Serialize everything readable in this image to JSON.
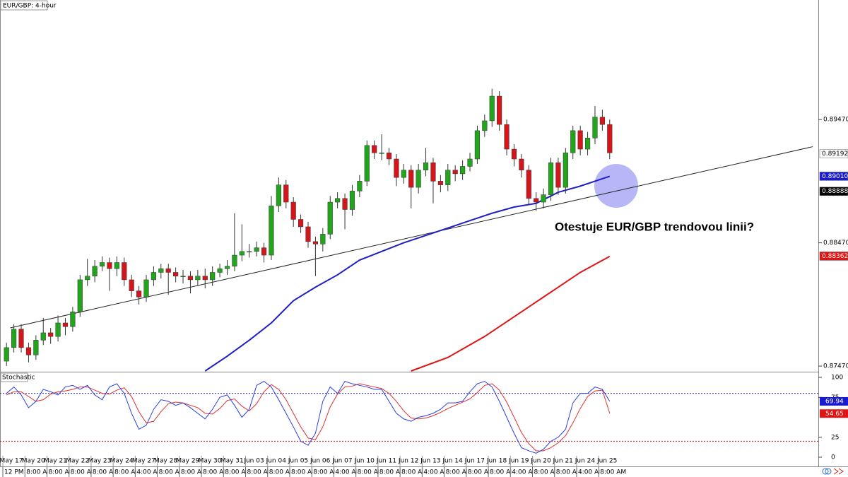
{
  "chart_data": {
    "type": "candlestick",
    "title": "EUR/GBP: 4-hour",
    "up_color": "#22a51c",
    "down_color": "#d4161c",
    "open": [
      0.8751,
      0.8762,
      0.8777,
      0.8762,
      0.8756,
      0.8768,
      0.8774,
      0.8771,
      0.8782,
      0.8779,
      0.8791,
      0.8817,
      0.882,
      0.8828,
      0.8831,
      0.8826,
      0.8831,
      0.8817,
      0.8808,
      0.8803,
      0.8817,
      0.8823,
      0.8826,
      0.8823,
      0.882,
      0.882,
      0.8817,
      0.882,
      0.8817,
      0.8823,
      0.8826,
      0.8828,
      0.8837,
      0.884,
      0.884,
      0.8843,
      0.8837,
      0.8877,
      0.8894,
      0.888,
      0.8866,
      0.886,
      0.8848,
      0.8846,
      0.8854,
      0.888,
      0.8883,
      0.8874,
      0.8889,
      0.8897,
      0.8926,
      0.892,
      0.892,
      0.8915,
      0.89,
      0.8906,
      0.8892,
      0.8906,
      0.8912,
      0.8897,
      0.8894,
      0.8906,
      0.8903,
      0.8909,
      0.8915,
      0.8938,
      0.8946,
      0.8966,
      0.8943,
      0.8923,
      0.8915,
      0.8906,
      0.8883,
      0.888,
      0.8886,
      0.8912,
      0.8892,
      0.892,
      0.8938,
      0.8923,
      0.8932,
      0.8949,
      0.8943
    ],
    "high": [
      0.8766,
      0.8781,
      0.8781,
      0.8766,
      0.8772,
      0.8786,
      0.8778,
      0.8788,
      0.8786,
      0.8795,
      0.8821,
      0.8834,
      0.8833,
      0.8836,
      0.8835,
      0.8836,
      0.8835,
      0.8821,
      0.8812,
      0.8821,
      0.8828,
      0.883,
      0.883,
      0.8827,
      0.8825,
      0.8824,
      0.8825,
      0.8826,
      0.8828,
      0.883,
      0.8833,
      0.8871,
      0.8862,
      0.8846,
      0.8848,
      0.8847,
      0.8885,
      0.89,
      0.8898,
      0.8884,
      0.887,
      0.8864,
      0.8852,
      0.8859,
      0.8885,
      0.8888,
      0.8887,
      0.8894,
      0.8902,
      0.893,
      0.893,
      0.8935,
      0.8924,
      0.8919,
      0.8911,
      0.891,
      0.8911,
      0.8924,
      0.8916,
      0.8902,
      0.8911,
      0.891,
      0.8914,
      0.892,
      0.8942,
      0.8951,
      0.8972,
      0.897,
      0.8947,
      0.8927,
      0.8919,
      0.891,
      0.8888,
      0.8891,
      0.8916,
      0.8916,
      0.8924,
      0.8942,
      0.8942,
      0.8937,
      0.8958,
      0.8955,
      0.8947
    ],
    "low": [
      0.8747,
      0.8758,
      0.8758,
      0.875,
      0.8752,
      0.8764,
      0.8765,
      0.8767,
      0.8772,
      0.8775,
      0.8787,
      0.8812,
      0.8815,
      0.8824,
      0.8808,
      0.882,
      0.8812,
      0.8803,
      0.8797,
      0.8799,
      0.8812,
      0.8818,
      0.8805,
      0.8815,
      0.8814,
      0.8806,
      0.8812,
      0.881,
      0.8812,
      0.8819,
      0.8821,
      0.8824,
      0.8832,
      0.8835,
      0.8836,
      0.8831,
      0.8833,
      0.8872,
      0.8875,
      0.886,
      0.8855,
      0.8843,
      0.882,
      0.884,
      0.885,
      0.8875,
      0.8858,
      0.8869,
      0.8884,
      0.8893,
      0.8915,
      0.8914,
      0.891,
      0.8893,
      0.8895,
      0.8875,
      0.8887,
      0.8901,
      0.8879,
      0.8888,
      0.8889,
      0.8897,
      0.8898,
      0.8905,
      0.8911,
      0.8933,
      0.8941,
      0.8938,
      0.8918,
      0.8909,
      0.89,
      0.8878,
      0.8873,
      0.8875,
      0.8881,
      0.8886,
      0.8887,
      0.8915,
      0.8918,
      0.8918,
      0.8927,
      0.8938,
      0.8915
    ],
    "close": [
      0.8762,
      0.8777,
      0.8762,
      0.8756,
      0.8768,
      0.8774,
      0.8771,
      0.8782,
      0.8779,
      0.8791,
      0.8817,
      0.882,
      0.8828,
      0.8831,
      0.8826,
      0.8831,
      0.8817,
      0.8808,
      0.8803,
      0.8817,
      0.8823,
      0.8826,
      0.8823,
      0.882,
      0.882,
      0.8817,
      0.882,
      0.8817,
      0.8823,
      0.8826,
      0.8828,
      0.8837,
      0.884,
      0.884,
      0.8843,
      0.8837,
      0.8877,
      0.8894,
      0.888,
      0.8866,
      0.886,
      0.8848,
      0.8846,
      0.8854,
      0.888,
      0.8883,
      0.8874,
      0.8889,
      0.8897,
      0.8926,
      0.892,
      0.892,
      0.8915,
      0.89,
      0.8906,
      0.8892,
      0.8906,
      0.8912,
      0.8897,
      0.8894,
      0.8906,
      0.8903,
      0.8909,
      0.8915,
      0.8938,
      0.8946,
      0.8966,
      0.8943,
      0.8923,
      0.8915,
      0.8906,
      0.8883,
      0.888,
      0.8886,
      0.8912,
      0.8892,
      0.892,
      0.8938,
      0.8923,
      0.8932,
      0.8949,
      0.8943,
      0.892
    ],
    "ylim": [
      0.8743,
      0.9044
    ],
    "yticks": [
      {
        "value": 0.8947,
        "label": "0.89470"
      },
      {
        "value": 0.8847,
        "label": "0.88470"
      },
      {
        "value": 0.8747,
        "label": "0.87470"
      }
    ],
    "xticks": [
      {
        "value": 0,
        "label": "May 17"
      },
      {
        "value": 3,
        "label": "May 20"
      },
      {
        "value": 6,
        "label": "May 21"
      },
      {
        "value": 9,
        "label": "May 22"
      },
      {
        "value": 12,
        "label": "May 23"
      },
      {
        "value": 15,
        "label": "May 24"
      },
      {
        "value": 18,
        "label": "May 27"
      },
      {
        "value": 21,
        "label": "May 28"
      },
      {
        "value": 24,
        "label": "May 29"
      },
      {
        "value": 27,
        "label": "May 30"
      },
      {
        "value": 30,
        "label": "May 31"
      },
      {
        "value": 33,
        "label": "Jun 03"
      },
      {
        "value": 36,
        "label": "Jun 04"
      },
      {
        "value": 39,
        "label": "Jun 05"
      },
      {
        "value": 42,
        "label": "Jun 06"
      },
      {
        "value": 45,
        "label": "Jun 07"
      },
      {
        "value": 48,
        "label": "Jun 10"
      },
      {
        "value": 51,
        "label": "Jun 11"
      },
      {
        "value": 54,
        "label": "Jun 12"
      },
      {
        "value": 57,
        "label": "Jun 13"
      },
      {
        "value": 60,
        "label": "Jun 14"
      },
      {
        "value": 63,
        "label": "Jun 17"
      },
      {
        "value": 66,
        "label": "Jun 18"
      },
      {
        "value": 69,
        "label": "Jun 19"
      },
      {
        "value": 72,
        "label": "Jun 20"
      },
      {
        "value": 75,
        "label": "Jun 21"
      },
      {
        "value": 78,
        "label": "Jun 24"
      },
      {
        "value": 81,
        "label": "Jun 25"
      }
    ],
    "time_labels": [
      "12 PM",
      "8:00 AM",
      "8:00 AM",
      "8:00 AM",
      "8:00 AM",
      "8:00 AM",
      "4:00 AM",
      "8:00 AM",
      "8:00 AM",
      "8:00 AM",
      "8:00 AM",
      "8:00 AM",
      "8:00 AM",
      "8:00 AM",
      "8:00 AM",
      "4:00 AM",
      "8:00 AM",
      "8:00 AM",
      "8:00 AM",
      "4:00 AM",
      "8:00 AM",
      "8:00 AM",
      "8:00 AM",
      "4:00 AM",
      "8:00 AM",
      "8:00 AM",
      "4:00 AM",
      "8:00 AM"
    ],
    "overlays": [
      {
        "color": "#1f1fc8",
        "x": [
          27,
          30,
          33,
          36,
          39,
          42,
          45,
          48,
          51,
          54,
          57,
          60,
          63,
          66,
          69,
          72,
          75,
          78,
          82
        ],
        "values": [
          0.8743,
          0.8755,
          0.8768,
          0.8782,
          0.88,
          0.8811,
          0.8821,
          0.8833,
          0.884,
          0.8847,
          0.8853,
          0.8859,
          0.8865,
          0.8871,
          0.8876,
          0.8879,
          0.8888,
          0.8893,
          0.8901
        ]
      },
      {
        "color": "#e01414",
        "x": [
          55,
          60,
          65,
          70,
          75,
          78,
          82
        ],
        "values": [
          0.8743,
          0.8754,
          0.8771,
          0.8791,
          0.8811,
          0.8823,
          0.8836
        ]
      }
    ],
    "trendline": {
      "color": "#222222",
      "x": [
        0.5,
        109.6
      ],
      "values": [
        0.8778,
        0.8925
      ]
    },
    "annotation": "Otestuje EUR/GBP trendovou linii?",
    "price_tags": [
      {
        "value": 0.89192,
        "bg": "#ffffff",
        "fg": "#000000"
      },
      {
        "value": 0.8901,
        "label": "0.89010",
        "bg": "#1a1ad0",
        "fg": "#ffffff"
      },
      {
        "value": 0.88888,
        "bg": "#000000",
        "fg": "#ffffff"
      },
      {
        "value": 0.88362,
        "bg": "#e01414",
        "fg": "#ffffff"
      }
    ],
    "stochastic": {
      "title": "Stochastic",
      "ylim": [
        -11.5,
        106.2
      ],
      "yticks": [
        0,
        25,
        75,
        100
      ],
      "levels": [
        {
          "value": 80,
          "color": "#2a2ab8"
        },
        {
          "value": 20,
          "color": "#d01010"
        }
      ],
      "k": {
        "color": "#2b3fe0",
        "values": [
          80,
          88,
          78,
          62,
          70,
          85,
          82,
          78,
          88,
          90,
          85,
          90,
          78,
          72,
          88,
          92,
          80,
          55,
          35,
          40,
          60,
          72,
          70,
          65,
          68,
          62,
          55,
          48,
          60,
          75,
          78,
          65,
          50,
          60,
          90,
          95,
          88,
          72,
          55,
          38,
          20,
          15,
          30,
          70,
          88,
          80,
          95,
          92,
          90,
          88,
          85,
          85,
          70,
          55,
          48,
          45,
          50,
          52,
          55,
          60,
          68,
          68,
          70,
          82,
          92,
          95,
          88,
          70,
          50,
          30,
          12,
          8,
          5,
          10,
          20,
          25,
          35,
          68,
          80,
          80,
          88,
          85,
          70
        ]
      },
      "d": {
        "color": "#e03030",
        "values": [
          78,
          82,
          82,
          76,
          70,
          72,
          79,
          82,
          83,
          85,
          88,
          88,
          84,
          80,
          79,
          84,
          87,
          76,
          57,
          43,
          45,
          57,
          67,
          69,
          68,
          65,
          62,
          55,
          54,
          61,
          71,
          73,
          64,
          58,
          67,
          82,
          91,
          85,
          72,
          55,
          38,
          24,
          22,
          38,
          63,
          79,
          88,
          89,
          92,
          90,
          88,
          86,
          80,
          70,
          58,
          49,
          48,
          49,
          52,
          56,
          61,
          65,
          69,
          73,
          81,
          90,
          92,
          84,
          69,
          50,
          31,
          17,
          8,
          8,
          12,
          18,
          27,
          43,
          61,
          76,
          83,
          84,
          55
        ]
      },
      "tags": [
        {
          "value": 69.94,
          "bg": "#1a1ad0",
          "fg": "#ffffff"
        },
        {
          "value": 54.65,
          "bg": "#e01414",
          "fg": "#ffffff"
        }
      ]
    }
  }
}
